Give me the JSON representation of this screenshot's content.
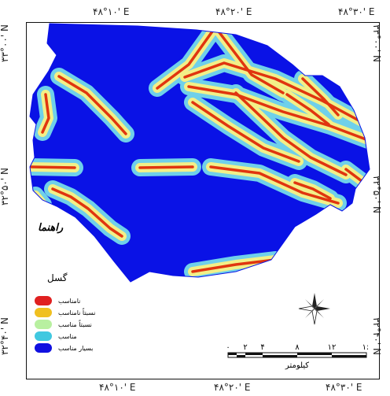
{
  "coords": {
    "top_left": "۴۸°۱۰' E",
    "top_center": "۴۸°۲۰' E",
    "top_right": "۴۸°۳۰' E",
    "bottom_left": "۴۸°۱۰' E",
    "bottom_center": "۴۸°۲۰' E",
    "bottom_right": "۴۸°۳۰' E",
    "left_top": "۳۳°۰۰' N",
    "left_mid": "۳۲°۵۰' N",
    "left_bottom": "۳۲°۴۰' N",
    "right_top": "۳۳°۰۰' N",
    "right_mid": "۳۲°۵۰' N",
    "right_bottom": "۳۲°۴۰' N"
  },
  "legend": {
    "title": "راهنما",
    "subtitle": "گسل",
    "items": [
      {
        "label": "نامناسب",
        "color": "#e02020"
      },
      {
        "label": "نسبتاً نامناسب",
        "color": "#f0c020"
      },
      {
        "label": "نسبتاً مناسب",
        "color": "#b8f0a0"
      },
      {
        "label": "مناسب",
        "color": "#40c8e0"
      },
      {
        "label": "بسیار مناسب",
        "color": "#1010e0"
      }
    ]
  },
  "scale": {
    "ticks": [
      "۰",
      "۲",
      "۴",
      "۸",
      "۱۲",
      "۱۶"
    ],
    "unit": "کیلومتر"
  },
  "colors": {
    "background_zone": "#0a12e6",
    "buffer_outer": "#6fd0ea",
    "buffer_mid": "#f2f088",
    "fault_core": "#e0350f"
  }
}
